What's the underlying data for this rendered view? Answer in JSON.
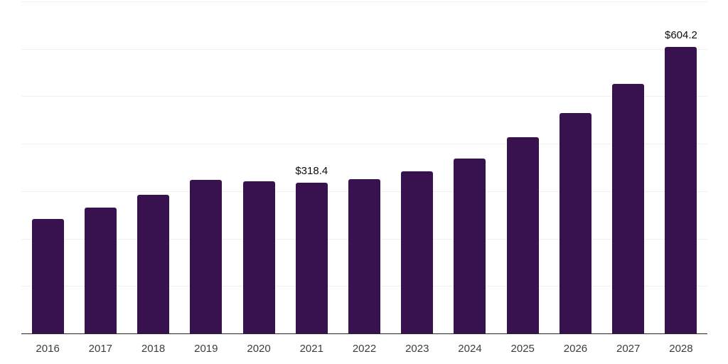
{
  "chart_data": {
    "type": "bar",
    "title": "",
    "xlabel": "",
    "ylabel": "",
    "categories": [
      "2016",
      "2017",
      "2018",
      "2019",
      "2020",
      "2021",
      "2022",
      "2023",
      "2024",
      "2025",
      "2026",
      "2027",
      "2028"
    ],
    "values": [
      242,
      266,
      292,
      324,
      321,
      318.4,
      326,
      342,
      369,
      413,
      464,
      526,
      604.2
    ],
    "data_labels": {
      "2021": "$318.4",
      "2028": "$604.2"
    },
    "ylim": [
      0,
      700
    ],
    "gridline_step": 100,
    "grid": true,
    "legend_position": "none",
    "y_axis_ticks_visible": false,
    "value_prefix": "$"
  },
  "colors": {
    "bar": "#38124E",
    "gridline": "#f0f0f0",
    "axis_line": "#262626",
    "tick_label": "#3d3d3d",
    "data_label": "#0d0d0d",
    "background": "#ffffff"
  }
}
